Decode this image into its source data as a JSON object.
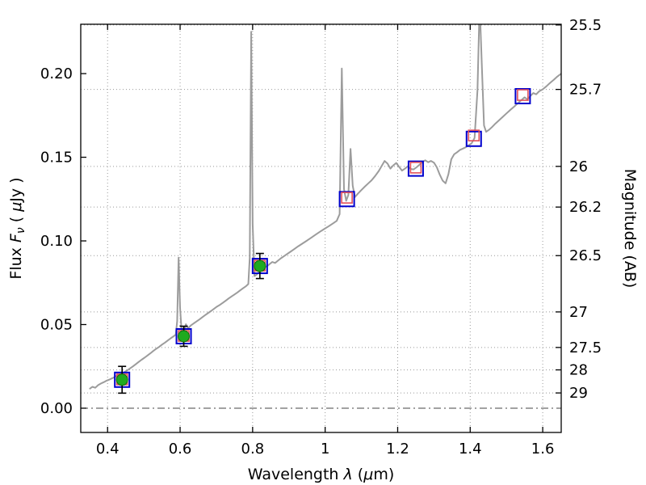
{
  "figure": {
    "title": "",
    "xlabel": "Wavelength  λ (μm)",
    "ylabel_left": "Flux  Fν  ( μJy )",
    "ylabel_right": "Magnitude (AB)"
  },
  "chart_data": {
    "type": "line",
    "title": "",
    "xlabel": "Wavelength  λ (μm)",
    "xlabel_parts": [
      {
        "t": "Wavelength  "
      },
      {
        "t": "λ",
        "i": 1
      },
      {
        "t": " ("
      },
      {
        "t": "μ",
        "i": 1
      },
      {
        "t": "m)"
      }
    ],
    "ylabel_left": "Flux Fν ( μJy )",
    "ylabel_left_parts": [
      {
        "t": "Flux  "
      },
      {
        "t": "F",
        "i": 1
      },
      {
        "t": "ν",
        "i": 1,
        "sub": 1
      },
      {
        "t": "  ( "
      },
      {
        "t": "μ",
        "i": 1
      },
      {
        "t": "Jy )"
      }
    ],
    "ylabel_right": "Magnitude (AB)",
    "xlim": [
      0.326,
      1.651
    ],
    "ylim": [
      -0.0145,
      0.2295
    ],
    "x_ticks": [
      0.4,
      0.6,
      0.8,
      1,
      1.2,
      1.4,
      1.6
    ],
    "x_tick_labels": [
      "0.4",
      "0.6",
      "0.8",
      "1",
      "1.2",
      "1.4",
      "1.6"
    ],
    "y_ticks_left": [
      0.0,
      0.05,
      0.1,
      0.15,
      0.2
    ],
    "y_tick_labels_left": [
      "0.00",
      "0.05",
      "0.10",
      "0.15",
      "0.20"
    ],
    "y_ticks_right_mag": [
      25.5,
      25.7,
      26,
      26.2,
      26.5,
      27,
      27.5,
      28,
      29
    ],
    "y_tick_labels_right": [
      "25.5",
      "25.7",
      "26",
      "26.2",
      "26.5",
      "27",
      "27.5",
      "28",
      "29"
    ],
    "mag_zeropoint_ab_microjy": 23.9,
    "grid": true,
    "legend": false,
    "zero_flux_line": 0,
    "colors": {
      "spectrum": "#9c9c9c",
      "observed": "#1faa1f",
      "observed_edge": "#0b6e0b",
      "error_bar": "#000000",
      "synthetic": "#0000cd",
      "model": "#e14f5a",
      "grid": "#999999",
      "zero_line": "#444444",
      "frame": "#000000"
    },
    "series": [
      {
        "name": "model-spectrum",
        "type": "line",
        "color": "#9c9c9c",
        "points": [
          [
            0.35,
            0.0115
          ],
          [
            0.358,
            0.0128
          ],
          [
            0.366,
            0.0122
          ],
          [
            0.374,
            0.0138
          ],
          [
            0.382,
            0.0148
          ],
          [
            0.39,
            0.0156
          ],
          [
            0.398,
            0.0165
          ],
          [
            0.406,
            0.0172
          ],
          [
            0.414,
            0.018
          ],
          [
            0.422,
            0.019
          ],
          [
            0.43,
            0.0198
          ],
          [
            0.438,
            0.0205
          ],
          [
            0.446,
            0.0215
          ],
          [
            0.454,
            0.0226
          ],
          [
            0.462,
            0.0238
          ],
          [
            0.47,
            0.025
          ],
          [
            0.478,
            0.0264
          ],
          [
            0.486,
            0.0277
          ],
          [
            0.494,
            0.029
          ],
          [
            0.502,
            0.0302
          ],
          [
            0.51,
            0.0315
          ],
          [
            0.518,
            0.0328
          ],
          [
            0.526,
            0.0342
          ],
          [
            0.534,
            0.0355
          ],
          [
            0.542,
            0.0366
          ],
          [
            0.55,
            0.038
          ],
          [
            0.558,
            0.0392
          ],
          [
            0.566,
            0.0405
          ],
          [
            0.574,
            0.0418
          ],
          [
            0.582,
            0.043
          ],
          [
            0.588,
            0.044
          ],
          [
            0.592,
            0.052
          ],
          [
            0.596,
            0.09
          ],
          [
            0.6,
            0.06
          ],
          [
            0.604,
            0.0468
          ],
          [
            0.61,
            0.0452
          ],
          [
            0.616,
            0.0502
          ],
          [
            0.622,
            0.0478
          ],
          [
            0.63,
            0.0495
          ],
          [
            0.638,
            0.0508
          ],
          [
            0.646,
            0.052
          ],
          [
            0.654,
            0.0532
          ],
          [
            0.662,
            0.0545
          ],
          [
            0.67,
            0.0558
          ],
          [
            0.678,
            0.057
          ],
          [
            0.686,
            0.0582
          ],
          [
            0.694,
            0.0595
          ],
          [
            0.702,
            0.0608
          ],
          [
            0.71,
            0.0618
          ],
          [
            0.718,
            0.063
          ],
          [
            0.726,
            0.0643
          ],
          [
            0.734,
            0.0656
          ],
          [
            0.742,
            0.0668
          ],
          [
            0.75,
            0.068
          ],
          [
            0.758,
            0.0692
          ],
          [
            0.766,
            0.0705
          ],
          [
            0.774,
            0.0718
          ],
          [
            0.782,
            0.073
          ],
          [
            0.788,
            0.0742
          ],
          [
            0.792,
            0.09
          ],
          [
            0.796,
            0.225
          ],
          [
            0.8,
            0.11
          ],
          [
            0.805,
            0.079
          ],
          [
            0.812,
            0.08
          ],
          [
            0.818,
            0.0815
          ],
          [
            0.824,
            0.0838
          ],
          [
            0.83,
            0.0852
          ],
          [
            0.838,
            0.0845
          ],
          [
            0.846,
            0.086
          ],
          [
            0.854,
            0.0874
          ],
          [
            0.862,
            0.0868
          ],
          [
            0.87,
            0.0882
          ],
          [
            0.878,
            0.0896
          ],
          [
            0.886,
            0.0908
          ],
          [
            0.894,
            0.092
          ],
          [
            0.904,
            0.0935
          ],
          [
            0.914,
            0.095
          ],
          [
            0.926,
            0.0968
          ],
          [
            0.938,
            0.0985
          ],
          [
            0.95,
            0.1002
          ],
          [
            0.962,
            0.102
          ],
          [
            0.974,
            0.1038
          ],
          [
            0.986,
            0.1055
          ],
          [
            0.998,
            0.1072
          ],
          [
            1.01,
            0.1088
          ],
          [
            1.022,
            0.1105
          ],
          [
            1.032,
            0.112
          ],
          [
            1.04,
            0.116
          ],
          [
            1.046,
            0.203
          ],
          [
            1.052,
            0.131
          ],
          [
            1.058,
            0.124
          ],
          [
            1.064,
            0.1275
          ],
          [
            1.07,
            0.155
          ],
          [
            1.076,
            0.133
          ],
          [
            1.082,
            0.1262
          ],
          [
            1.09,
            0.1282
          ],
          [
            1.098,
            0.13
          ],
          [
            1.108,
            0.1322
          ],
          [
            1.118,
            0.1342
          ],
          [
            1.128,
            0.1362
          ],
          [
            1.138,
            0.1388
          ],
          [
            1.148,
            0.1418
          ],
          [
            1.156,
            0.1448
          ],
          [
            1.164,
            0.1478
          ],
          [
            1.172,
            0.1462
          ],
          [
            1.18,
            0.1432
          ],
          [
            1.188,
            0.1452
          ],
          [
            1.196,
            0.1466
          ],
          [
            1.204,
            0.1442
          ],
          [
            1.212,
            0.142
          ],
          [
            1.22,
            0.1432
          ],
          [
            1.228,
            0.1446
          ],
          [
            1.236,
            0.143
          ],
          [
            1.244,
            0.1427
          ],
          [
            1.252,
            0.144
          ],
          [
            1.26,
            0.1455
          ],
          [
            1.268,
            0.147
          ],
          [
            1.276,
            0.1482
          ],
          [
            1.284,
            0.147
          ],
          [
            1.292,
            0.1478
          ],
          [
            1.3,
            0.1468
          ],
          [
            1.308,
            0.144
          ],
          [
            1.316,
            0.1396
          ],
          [
            1.324,
            0.136
          ],
          [
            1.332,
            0.1344
          ],
          [
            1.34,
            0.1398
          ],
          [
            1.348,
            0.1488
          ],
          [
            1.356,
            0.1518
          ],
          [
            1.364,
            0.153
          ],
          [
            1.372,
            0.1544
          ],
          [
            1.38,
            0.1552
          ],
          [
            1.388,
            0.156
          ],
          [
            1.396,
            0.1572
          ],
          [
            1.404,
            0.1584
          ],
          [
            1.412,
            0.1615
          ],
          [
            1.42,
            0.19
          ],
          [
            1.426,
            0.242
          ],
          [
            1.432,
            0.205
          ],
          [
            1.438,
            0.169
          ],
          [
            1.444,
            0.1652
          ],
          [
            1.452,
            0.1664
          ],
          [
            1.46,
            0.168
          ],
          [
            1.47,
            0.1702
          ],
          [
            1.48,
            0.1722
          ],
          [
            1.49,
            0.1742
          ],
          [
            1.5,
            0.1762
          ],
          [
            1.51,
            0.1782
          ],
          [
            1.52,
            0.18
          ],
          [
            1.53,
            0.182
          ],
          [
            1.54,
            0.184
          ],
          [
            1.55,
            0.1858
          ],
          [
            1.558,
            0.1846
          ],
          [
            1.566,
            0.1866
          ],
          [
            1.574,
            0.1884
          ],
          [
            1.582,
            0.1876
          ],
          [
            1.59,
            0.1894
          ],
          [
            1.6,
            0.1906
          ],
          [
            1.61,
            0.1924
          ],
          [
            1.62,
            0.1944
          ],
          [
            1.63,
            0.1962
          ],
          [
            1.64,
            0.1982
          ],
          [
            1.651,
            0.2
          ]
        ]
      },
      {
        "name": "observed-photometry",
        "type": "scatter-circle-errorbar",
        "color": "#1faa1f",
        "points": [
          [
            0.44,
            0.017,
            0.008
          ],
          [
            0.61,
            0.043,
            0.006
          ],
          [
            0.82,
            0.085,
            0.0075
          ]
        ]
      },
      {
        "name": "synthetic-photometry",
        "type": "scatter-open-square",
        "color": "#0000cd",
        "points": [
          [
            0.44,
            0.017
          ],
          [
            0.61,
            0.043
          ],
          [
            0.82,
            0.085
          ],
          [
            1.06,
            0.125
          ],
          [
            1.25,
            0.1432
          ],
          [
            1.41,
            0.161
          ],
          [
            1.545,
            0.1865
          ]
        ]
      },
      {
        "name": "model-photometry",
        "type": "scatter-open-square",
        "color": "#e14f5a",
        "points": [
          [
            0.44,
            0.0172
          ],
          [
            0.61,
            0.0432
          ],
          [
            0.82,
            0.0852
          ],
          [
            1.06,
            0.1258
          ],
          [
            1.25,
            0.1438
          ],
          [
            1.41,
            0.163
          ],
          [
            1.545,
            0.1872
          ]
        ]
      }
    ]
  }
}
